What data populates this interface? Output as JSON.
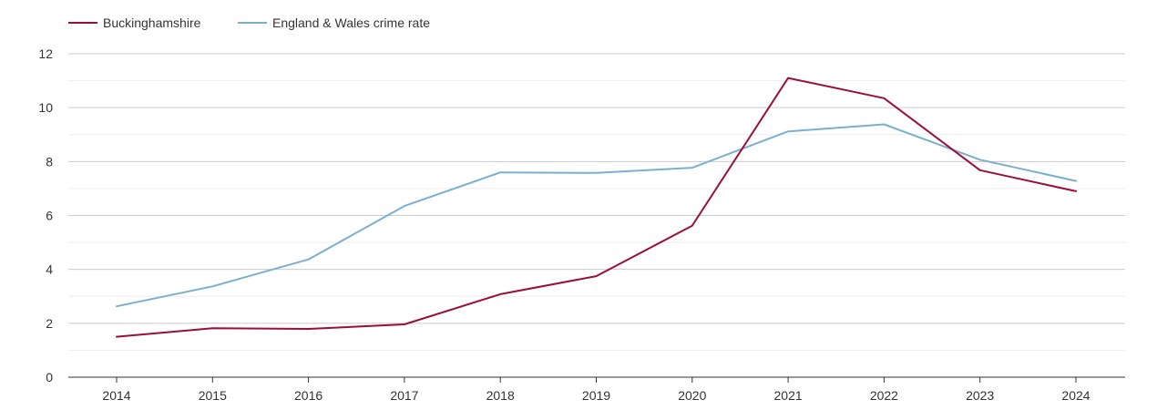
{
  "chart_data": {
    "type": "line",
    "title": "",
    "xlabel": "",
    "ylabel": "",
    "x": [
      2014,
      2015,
      2016,
      2017,
      2018,
      2019,
      2020,
      2021,
      2022,
      2023,
      2024
    ],
    "xticks": [
      "2014",
      "2015",
      "2016",
      "2017",
      "2018",
      "2019",
      "2020",
      "2021",
      "2022",
      "2023",
      "2024"
    ],
    "ylim": [
      0,
      12
    ],
    "yticks": [
      "0",
      "2",
      "4",
      "6",
      "8",
      "10",
      "12"
    ],
    "yminor": [
      1,
      3,
      5,
      7,
      9,
      11
    ],
    "grid": true,
    "legend_position": "top-left",
    "series": [
      {
        "name": "Buckinghamshire",
        "color": "#9b0f36",
        "values": [
          1.5,
          1.82,
          1.79,
          1.96,
          3.08,
          3.75,
          5.62,
          11.1,
          10.35,
          7.68,
          6.9
        ]
      },
      {
        "name": "England & Wales crime rate",
        "color": "#7bafd0",
        "values": [
          2.63,
          3.37,
          4.37,
          6.35,
          7.6,
          7.58,
          7.77,
          9.12,
          9.38,
          8.07,
          7.28
        ]
      }
    ]
  }
}
